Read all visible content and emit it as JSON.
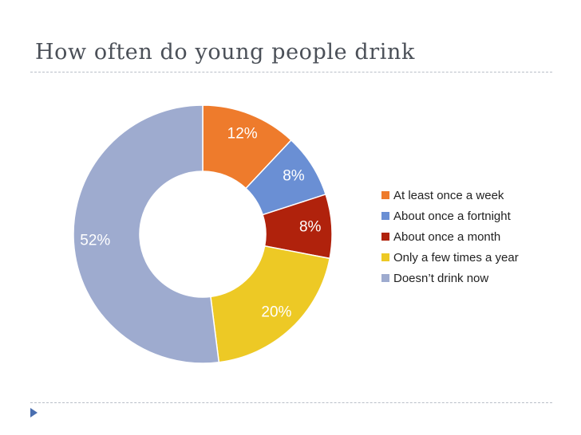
{
  "slide": {
    "title": "How often do young people drink"
  },
  "chart_data": {
    "type": "pie",
    "variant": "donut",
    "title": "",
    "categories": [
      "At least once a week",
      "About once a fortnight",
      "About once a month",
      "Only a few times a year",
      "Doesn’t drink now"
    ],
    "values": [
      12,
      8,
      8,
      20,
      52
    ],
    "labels": [
      "12%",
      "8%",
      "8%",
      "20%",
      "52%"
    ],
    "colors": [
      "#ee7b2c",
      "#6a8fd4",
      "#b0220c",
      "#edc925",
      "#9eabcf"
    ],
    "legend_position": "right"
  }
}
